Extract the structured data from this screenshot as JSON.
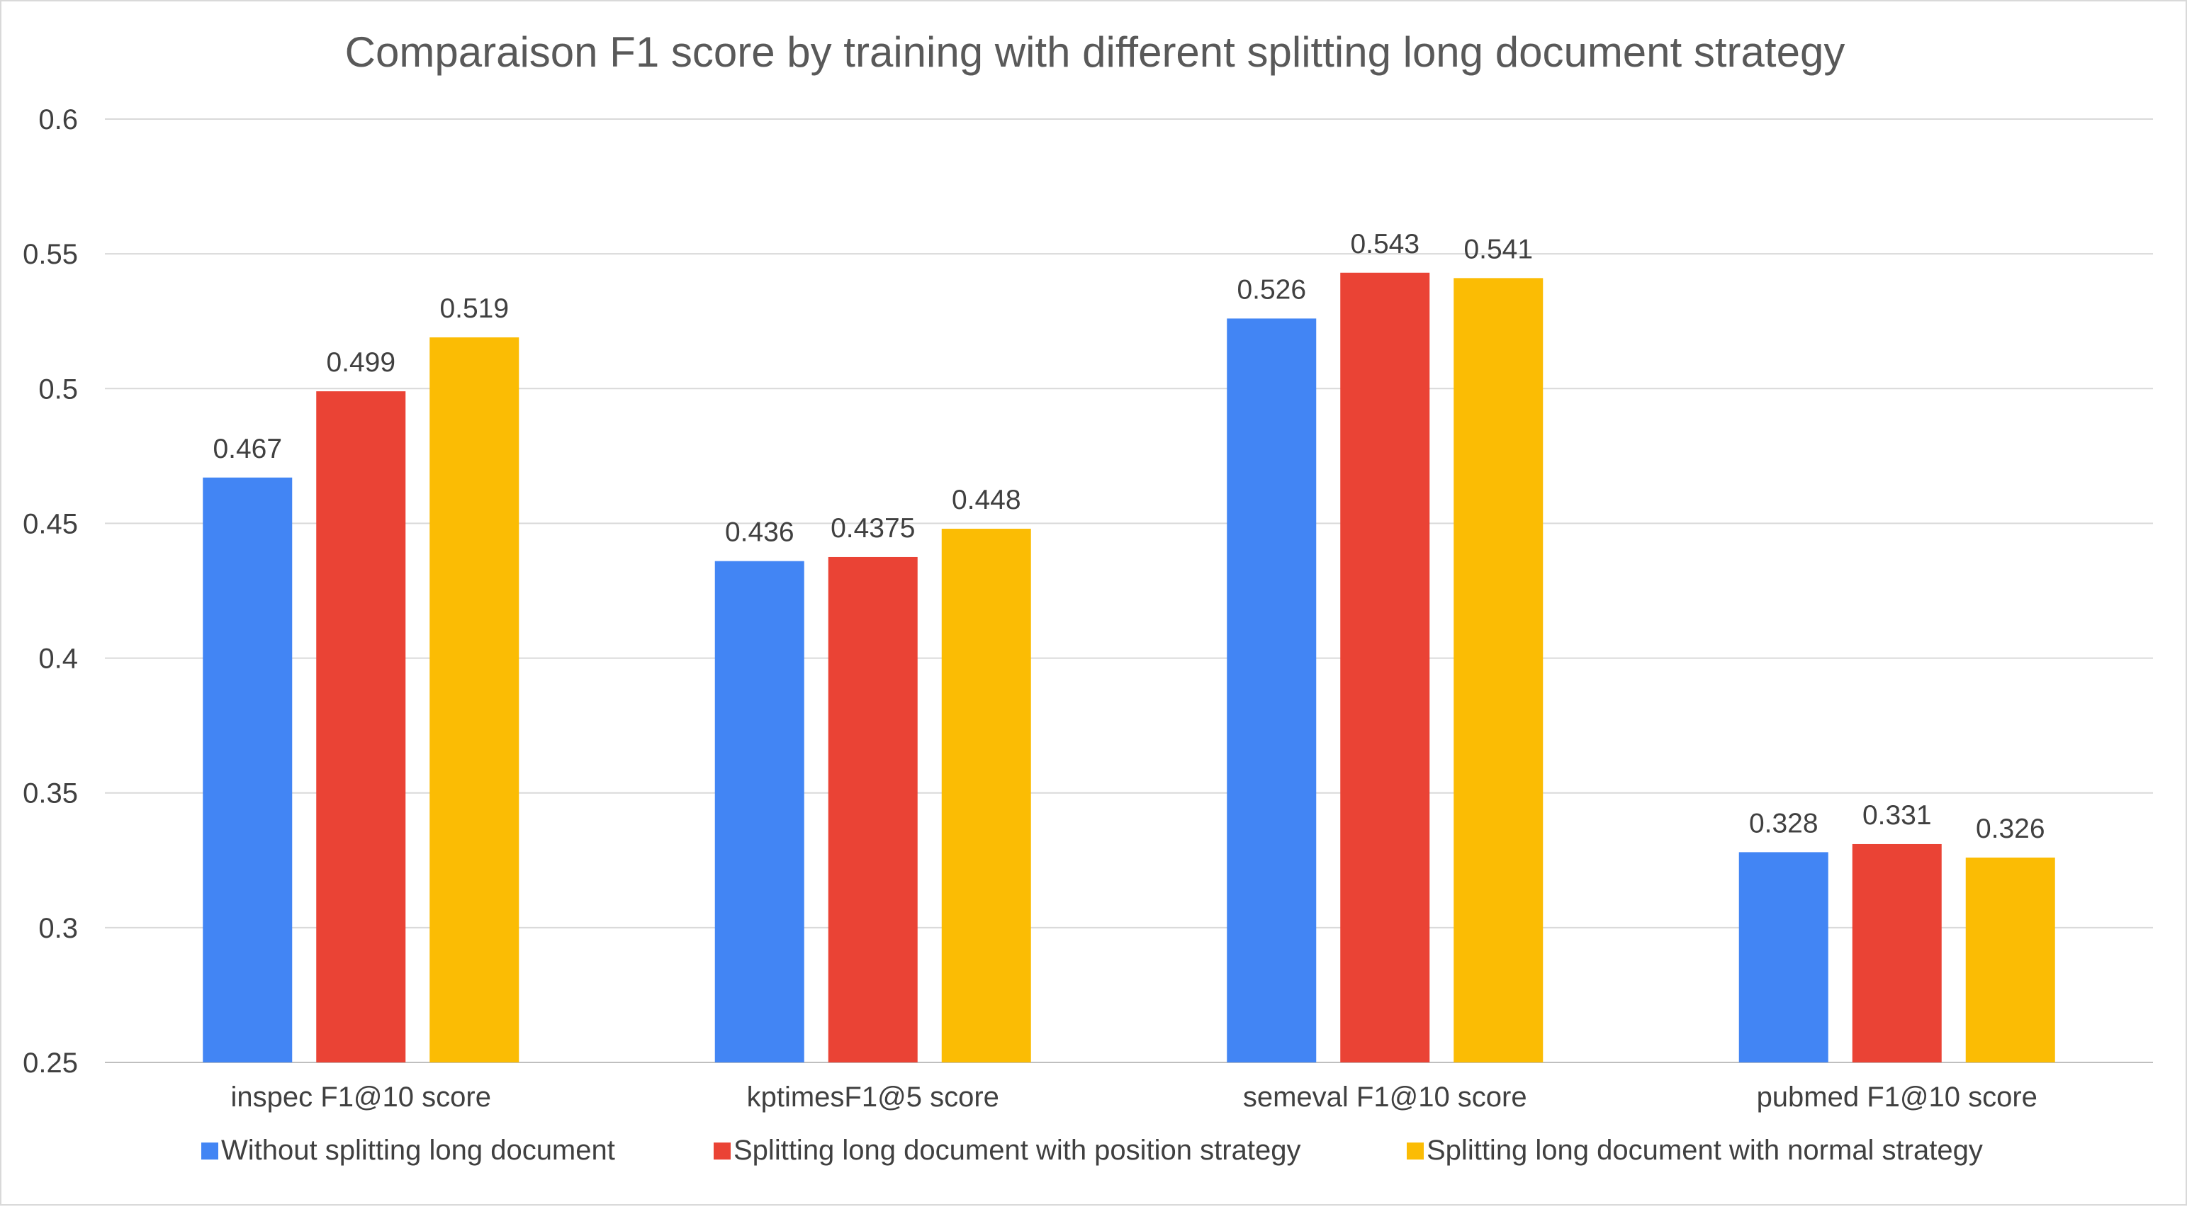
{
  "chart_data": {
    "type": "bar",
    "title": "Comparaison F1 score by training with different splitting long document strategy",
    "xlabel": "",
    "ylabel": "",
    "categories": [
      "inspec F1@10 score",
      "kptimesF1@5 score",
      "semeval F1@10 score",
      "pubmed F1@10 score"
    ],
    "series": [
      {
        "name": "Without splitting long document",
        "color": "#4285F4",
        "values": [
          0.467,
          0.436,
          0.526,
          0.328
        ],
        "labels": [
          "0.467",
          "0.436",
          "0.526",
          "0.328"
        ]
      },
      {
        "name": "Splitting long document with position strategy",
        "color": "#EA4335",
        "values": [
          0.499,
          0.4375,
          0.543,
          0.331
        ],
        "labels": [
          "0.499",
          "0.4375",
          "0.543",
          "0.331"
        ]
      },
      {
        "name": "Splitting long document with normal strategy",
        "color": "#FBBC04",
        "values": [
          0.519,
          0.448,
          0.541,
          0.326
        ],
        "labels": [
          "0.519",
          "0.448",
          "0.541",
          "0.326"
        ]
      }
    ],
    "ylim": [
      0.25,
      0.6
    ],
    "yticks": [
      "0.25",
      "0.3",
      "0.35",
      "0.4",
      "0.45",
      "0.5",
      "0.55",
      "0.6"
    ],
    "grid": true,
    "legend_position": "bottom"
  }
}
